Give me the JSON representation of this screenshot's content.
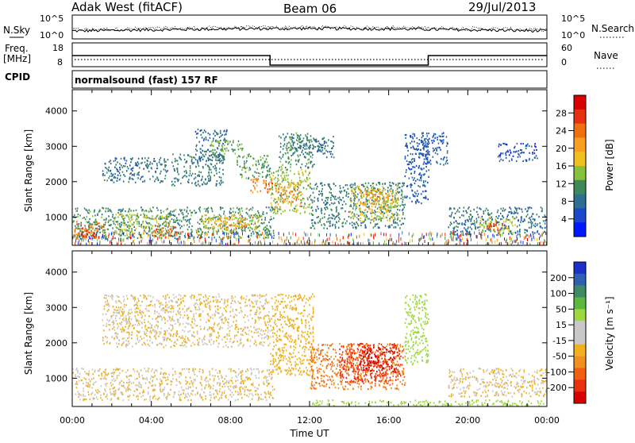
{
  "header": {
    "station": "Adak West (fitACF)",
    "beam": "Beam 06",
    "date": "29/Jul/2013"
  },
  "sky_panel": {
    "left_label": "N.Sky",
    "right_label": "N.Search",
    "tick_top": "10^5",
    "tick_bottom": "10^0",
    "right_tick_top": "10^5",
    "right_tick_bottom": "10^0"
  },
  "freq_panel": {
    "label_line1": "Freq.",
    "label_line2": "[MHz]",
    "left_ticks": [
      "18",
      "8"
    ],
    "right_ticks": [
      "60",
      "0"
    ],
    "right_label": "Nave",
    "freq_segments": [
      {
        "start_hour": 0,
        "end_hour": 10,
        "value_mhz": 14
      },
      {
        "start_hour": 10,
        "end_hour": 18,
        "value_mhz": 10
      },
      {
        "start_hour": 18,
        "end_hour": 24,
        "value_mhz": 14
      }
    ]
  },
  "cpid_panel": {
    "label": "CPID",
    "text": "normalsound (fast) 157 RF"
  },
  "axes": {
    "ylabel": "Slant Range [km]",
    "y_ticks": [
      "1000",
      "2000",
      "3000",
      "4000"
    ],
    "y_tick_values": [
      1000,
      2000,
      3000,
      4000
    ],
    "ylim": [
      200,
      4600
    ],
    "x_ticks": [
      "00:00",
      "04:00",
      "08:00",
      "12:00",
      "16:00",
      "20:00",
      "00:00"
    ],
    "xlim_hours": [
      0,
      24
    ],
    "xlabel": "Time UT"
  },
  "power_colorbar": {
    "label": "Power [dB]",
    "ticks": [
      "4",
      "8",
      "12",
      "16",
      "20",
      "24",
      "28"
    ],
    "colors": [
      "#0018ff",
      "#1a48c8",
      "#2e6e90",
      "#3c8a5a",
      "#86c23c",
      "#f0c020",
      "#f8a020",
      "#f07010",
      "#e63010",
      "#d80000"
    ]
  },
  "velocity_colorbar": {
    "label": "Velocity [m s⁻¹]",
    "ticks": [
      "200",
      "100",
      "50",
      "15",
      "-15",
      "-50",
      "-100",
      "-200"
    ],
    "colors": [
      "#1a30c8",
      "#2e60b0",
      "#3e8a64",
      "#5cb840",
      "#9ed840",
      "#c8c8c8",
      "#c8c8c8",
      "#f0b020",
      "#f09020",
      "#f06010",
      "#e83010",
      "#d80000"
    ]
  },
  "chart_data": [
    {
      "type": "heatmap",
      "title": "Power",
      "ylabel": "Slant Range [km]",
      "xlabel": "Time UT",
      "ylim": [
        200,
        4600
      ],
      "colorbar_label": "Power [dB]",
      "colorbar_ticks": [
        4,
        8,
        12,
        16,
        20,
        24,
        28
      ],
      "regions": [
        {
          "t0": 0.0,
          "t1": 10.2,
          "r0": 400,
          "r1": 1300,
          "p": 10
        },
        {
          "t0": 0.1,
          "t1": 1.6,
          "r0": 400,
          "r1": 900,
          "p": 22
        },
        {
          "t0": 0.3,
          "t1": 1.1,
          "r0": 400,
          "r1": 650,
          "p": 27
        },
        {
          "t0": 2.0,
          "t1": 5.0,
          "r0": 500,
          "r1": 1100,
          "p": 14
        },
        {
          "t0": 4.1,
          "t1": 5.3,
          "r0": 480,
          "r1": 800,
          "p": 24
        },
        {
          "t0": 6.5,
          "t1": 9.5,
          "r0": 600,
          "r1": 1100,
          "p": 16
        },
        {
          "t0": 7.3,
          "t1": 8.8,
          "r0": 700,
          "r1": 1000,
          "p": 20
        },
        {
          "t0": 1.5,
          "t1": 4.8,
          "r0": 2000,
          "r1": 2700,
          "p": 8
        },
        {
          "t0": 5.0,
          "t1": 7.6,
          "r0": 1900,
          "r1": 2800,
          "p": 9
        },
        {
          "t0": 6.2,
          "t1": 7.8,
          "r0": 2600,
          "r1": 3500,
          "p": 7
        },
        {
          "t0": 7.0,
          "t1": 8.6,
          "r0": 2700,
          "r1": 3200,
          "p": 12
        },
        {
          "t0": 8.3,
          "t1": 10.0,
          "r0": 2100,
          "r1": 2800,
          "p": 11
        },
        {
          "t0": 9.0,
          "t1": 10.1,
          "r0": 1700,
          "r1": 2100,
          "p": 21
        },
        {
          "t0": 9.6,
          "t1": 10.1,
          "r0": 1800,
          "r1": 2000,
          "p": 26
        },
        {
          "t0": 10.0,
          "t1": 12.0,
          "r0": 1100,
          "r1": 2400,
          "p": 14
        },
        {
          "t0": 10.2,
          "t1": 11.6,
          "r0": 1300,
          "r1": 2000,
          "p": 20
        },
        {
          "t0": 10.4,
          "t1": 12.2,
          "r0": 2400,
          "r1": 3400,
          "p": 10
        },
        {
          "t0": 11.0,
          "t1": 13.2,
          "r0": 2700,
          "r1": 3300,
          "p": 8
        },
        {
          "t0": 12.0,
          "t1": 16.8,
          "r0": 700,
          "r1": 2000,
          "p": 9
        },
        {
          "t0": 14.0,
          "t1": 16.5,
          "r0": 900,
          "r1": 1900,
          "p": 15
        },
        {
          "t0": 14.5,
          "t1": 16.2,
          "r0": 1200,
          "r1": 1800,
          "p": 19
        },
        {
          "t0": 16.8,
          "t1": 18.0,
          "r0": 1400,
          "r1": 3400,
          "p": 6
        },
        {
          "t0": 17.5,
          "t1": 19.0,
          "r0": 2500,
          "r1": 3400,
          "p": 6
        },
        {
          "t0": 19.0,
          "t1": 24.0,
          "r0": 500,
          "r1": 1300,
          "p": 8
        },
        {
          "t0": 20.5,
          "t1": 22.5,
          "r0": 600,
          "r1": 1000,
          "p": 15
        },
        {
          "t0": 20.8,
          "t1": 21.8,
          "r0": 650,
          "r1": 900,
          "p": 24
        },
        {
          "t0": 21.5,
          "t1": 23.5,
          "r0": 2600,
          "r1": 3100,
          "p": 5
        }
      ]
    },
    {
      "type": "heatmap",
      "title": "Velocity",
      "ylabel": "Slant Range [km]",
      "xlabel": "Time UT",
      "ylim": [
        200,
        4600
      ],
      "colorbar_label": "Velocity [m s⁻¹]",
      "colorbar_ticks": [
        200,
        100,
        50,
        15,
        -15,
        -50,
        -100,
        -200
      ],
      "regions": [
        {
          "t0": 0.0,
          "t1": 10.2,
          "r0": 400,
          "r1": 1300,
          "v": 0
        },
        {
          "t0": 1.5,
          "t1": 10.0,
          "r0": 1900,
          "r1": 3400,
          "v": 0
        },
        {
          "t0": 10.0,
          "t1": 12.2,
          "r0": 1100,
          "r1": 3400,
          "v": -5
        },
        {
          "t0": 12.0,
          "t1": 16.8,
          "r0": 700,
          "r1": 2000,
          "v": -30
        },
        {
          "t0": 13.5,
          "t1": 16.6,
          "r0": 900,
          "r1": 2000,
          "v": -70
        },
        {
          "t0": 14.5,
          "t1": 16.3,
          "r0": 1200,
          "r1": 1900,
          "v": -110
        },
        {
          "t0": 16.8,
          "t1": 18.0,
          "r0": 1400,
          "r1": 3400,
          "v": 40
        },
        {
          "t0": 19.0,
          "t1": 24.0,
          "r0": 500,
          "r1": 1300,
          "v": 0
        },
        {
          "t0": 12.0,
          "t1": 24.0,
          "r0": 200,
          "r1": 400,
          "v": 35
        }
      ]
    }
  ]
}
